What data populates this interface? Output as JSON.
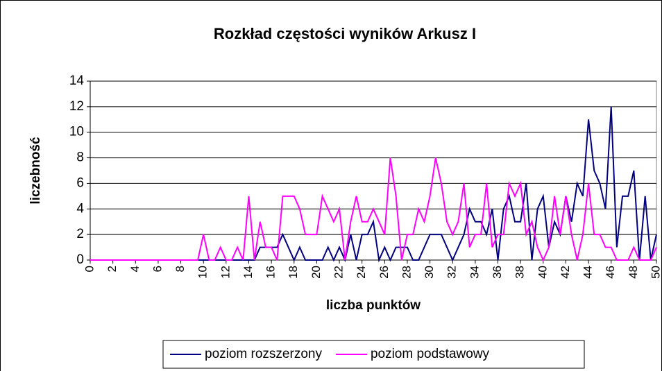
{
  "chart_data": {
    "type": "line",
    "title": "Rozkład częstości wyników Arkusz I",
    "x_label": "liczba punktów",
    "y_label": "liczebność",
    "x": [
      0,
      0.5,
      1,
      1.5,
      2,
      2.5,
      3,
      3.5,
      4,
      4.5,
      5,
      5.5,
      6,
      6.5,
      7,
      7.5,
      8,
      8.5,
      9,
      9.5,
      10,
      10.5,
      11,
      11.5,
      12,
      12.5,
      13,
      13.5,
      14,
      14.5,
      15,
      15.5,
      16,
      16.5,
      17,
      17.5,
      18,
      18.5,
      19,
      19.5,
      20,
      20.5,
      21,
      21.5,
      22,
      22.5,
      23,
      23.5,
      24,
      24.5,
      25,
      25.5,
      26,
      26.5,
      27,
      27.5,
      28,
      28.5,
      29,
      29.5,
      30,
      30.5,
      31,
      31.5,
      32,
      32.5,
      33,
      33.5,
      34,
      34.5,
      35,
      35.5,
      36,
      36.5,
      37,
      37.5,
      38,
      38.5,
      39,
      39.5,
      40,
      40.5,
      41,
      41.5,
      42,
      42.5,
      43,
      43.5,
      44,
      44.5,
      45,
      45.5,
      46,
      46.5,
      47,
      47.5,
      48,
      48.5,
      49,
      49.5,
      50
    ],
    "series": [
      {
        "name": "poziom rozszerzony",
        "color": "#000080",
        "values": [
          0,
          0,
          0,
          0,
          0,
          0,
          0,
          0,
          0,
          0,
          0,
          0,
          0,
          0,
          0,
          0,
          0,
          0,
          0,
          0,
          0,
          0,
          0,
          0,
          0,
          0,
          0,
          0,
          0,
          0,
          1,
          1,
          1,
          1,
          2,
          1,
          0,
          1,
          0,
          0,
          0,
          0,
          1,
          0,
          1,
          0,
          2,
          0,
          2,
          2,
          3,
          0,
          1,
          0,
          1,
          1,
          1,
          0,
          0,
          1,
          2,
          2,
          2,
          1,
          0,
          1,
          2,
          4,
          3,
          3,
          2,
          4,
          0,
          4,
          5,
          3,
          3,
          6,
          0,
          4,
          5,
          1,
          3,
          2,
          5,
          3,
          6,
          5,
          11,
          7,
          6,
          4,
          12,
          1,
          5,
          5,
          7,
          0,
          5,
          0,
          2
        ]
      },
      {
        "name": "poziom podstawowy",
        "color": "#ff00ff",
        "values": [
          0,
          0,
          0,
          0,
          0,
          0,
          0,
          0,
          0,
          0,
          0,
          0,
          0,
          0,
          0,
          0,
          0,
          0,
          0,
          0,
          2,
          0,
          0,
          1,
          0,
          0,
          1,
          0,
          5,
          0,
          3,
          1,
          1,
          0,
          5,
          5,
          5,
          4,
          2,
          2,
          2,
          5,
          4,
          3,
          4,
          0,
          3,
          5,
          3,
          3,
          4,
          3,
          2,
          8,
          5,
          0,
          2,
          2,
          4,
          3,
          5,
          8,
          6,
          3,
          2,
          3,
          6,
          1,
          2,
          2,
          6,
          1,
          2,
          2,
          6,
          5,
          6,
          2,
          3,
          1,
          0,
          1,
          5,
          2,
          5,
          2,
          0,
          2,
          6,
          2,
          2,
          1,
          1,
          0,
          0,
          0,
          1,
          0,
          0,
          0,
          1
        ]
      }
    ],
    "xlim": [
      0,
      50
    ],
    "xticks": [
      0,
      2,
      4,
      6,
      8,
      10,
      12,
      14,
      16,
      18,
      20,
      22,
      24,
      26,
      28,
      30,
      32,
      34,
      36,
      38,
      40,
      42,
      44,
      46,
      48,
      50
    ],
    "ylim": [
      0,
      14
    ],
    "yticks": [
      0,
      2,
      4,
      6,
      8,
      10,
      12,
      14
    ],
    "grid": true,
    "legend": "bottom"
  }
}
